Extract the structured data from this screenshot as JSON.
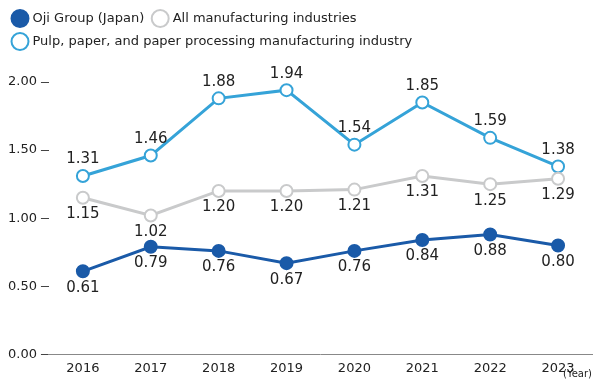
{
  "chart_data": {
    "type": "line",
    "categories": [
      "2016",
      "2017",
      "2018",
      "2019",
      "2020",
      "2021",
      "2022",
      "2023"
    ],
    "x_label": "(Year)",
    "series": [
      {
        "name": "Oji Group (Japan)",
        "color": "#1a5aa8",
        "marker": "circle",
        "values": [
          0.61,
          0.79,
          0.76,
          0.67,
          0.76,
          0.84,
          0.88,
          0.8
        ],
        "value_labels": [
          "0.61",
          "0.79",
          "0.76",
          "0.67",
          "0.76",
          "0.84",
          "0.88",
          "0.80"
        ]
      },
      {
        "name": "All manufacturing industries",
        "color": "#c9cacb",
        "marker": "open_circle",
        "values": [
          1.15,
          1.02,
          1.2,
          1.2,
          1.21,
          1.31,
          1.25,
          1.29
        ],
        "value_labels": [
          "1.15",
          "1.02",
          "1.20",
          "1.20",
          "1.21",
          "1.31",
          "1.25",
          "1.29"
        ]
      },
      {
        "name": "Pulp, paper, and paper processing manufacturing industry",
        "color": "#35a3d8",
        "marker": "open_circle",
        "values": [
          1.31,
          1.46,
          1.88,
          1.94,
          1.54,
          1.85,
          1.59,
          1.38
        ],
        "value_labels": [
          "1.31",
          "1.46",
          "1.88",
          "1.94",
          "1.54",
          "1.85",
          "1.59",
          "1.38"
        ]
      }
    ],
    "ylim": [
      0,
      2
    ],
    "yticks": [
      {
        "value": 0,
        "label": "0.00"
      },
      {
        "value": 0.5,
        "label": "0.50"
      },
      {
        "value": 1,
        "label": "1.00"
      },
      {
        "value": 1.5,
        "label": "1.50"
      },
      {
        "value": 2,
        "label": "2.00"
      }
    ],
    "grid": false,
    "legend": "top-left",
    "data_labels": true
  }
}
